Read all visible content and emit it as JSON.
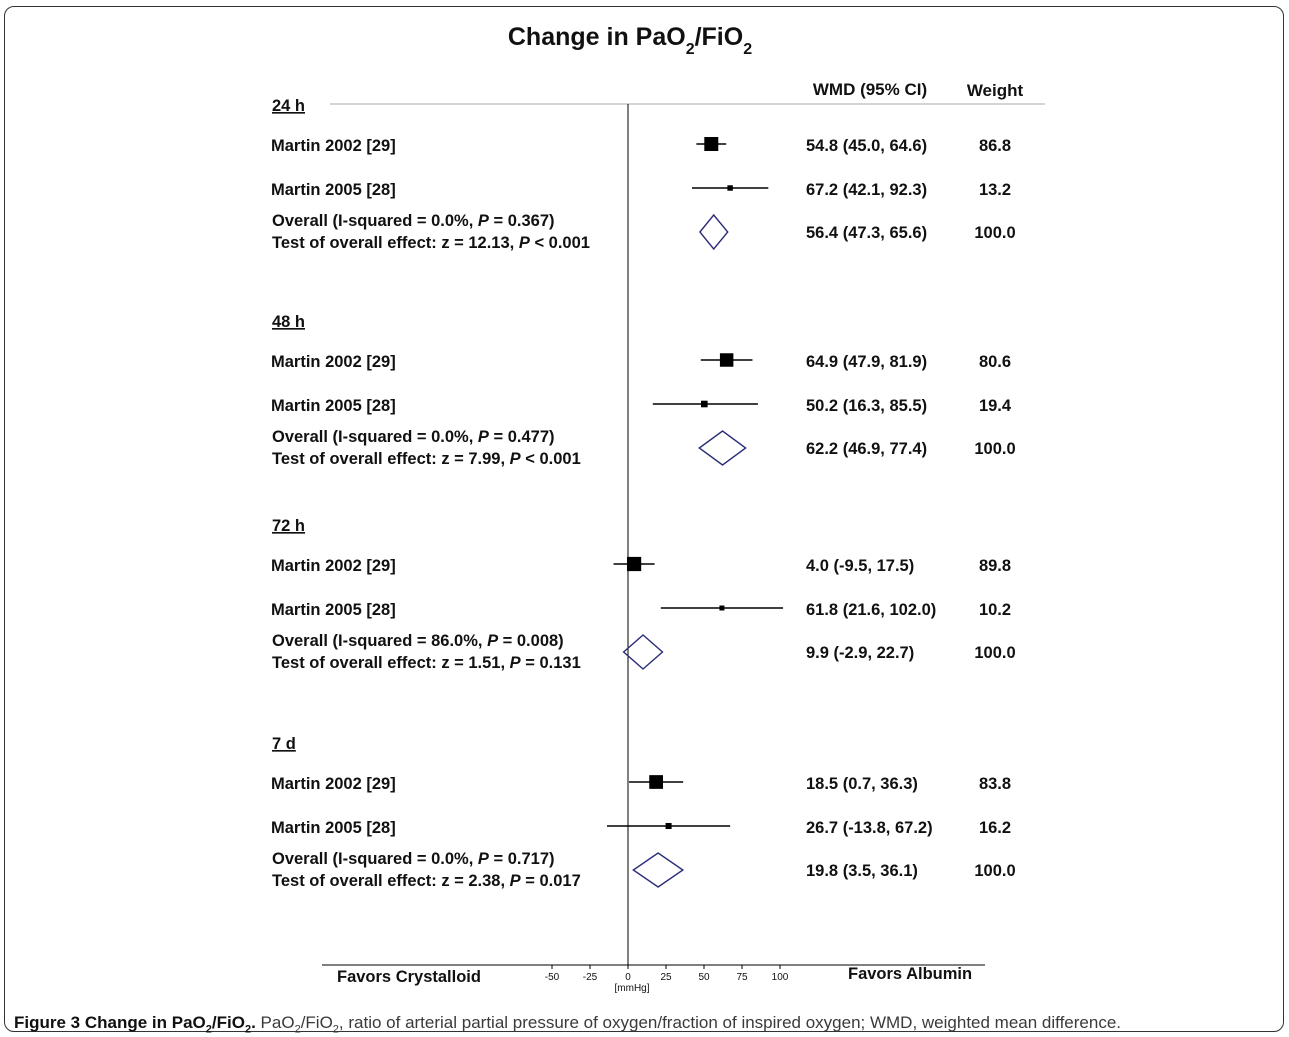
{
  "chart_data": {
    "type": "forest",
    "title": "Change in PaO2/FiO2",
    "columns": {
      "wmd": "WMD (95% CI)",
      "weight": "Weight"
    },
    "axis": {
      "unit": "[mmHg]",
      "ticks": [
        -50,
        -25,
        0,
        25,
        50,
        75,
        100
      ],
      "left_label": "Favors Crystalloid",
      "right_label": "Favors Albumin",
      "null_line": 0
    },
    "groups": [
      {
        "label": "24 h",
        "studies": [
          {
            "name": "Martin 2002 [29]",
            "est": 54.8,
            "lo": 45.0,
            "hi": 64.6,
            "ci_text": "54.8 (45.0, 64.6)",
            "weight": "86.8"
          },
          {
            "name": "Martin 2005 [28]",
            "est": 67.2,
            "lo": 42.1,
            "hi": 92.3,
            "ci_text": "67.2 (42.1, 92.3)",
            "weight": "13.2"
          }
        ],
        "overall": {
          "heterogeneity": "Overall (I-squared = 0.0%, P = 0.367)",
          "test": "Test of overall effect: z = 12.13, P < 0.001",
          "est": 56.4,
          "lo": 47.3,
          "hi": 65.6,
          "ci_text": "56.4 (47.3, 65.6)",
          "weight": "100.0"
        }
      },
      {
        "label": "48 h",
        "studies": [
          {
            "name": "Martin 2002 [29]",
            "est": 64.9,
            "lo": 47.9,
            "hi": 81.9,
            "ci_text": "64.9 (47.9, 81.9)",
            "weight": "80.6"
          },
          {
            "name": "Martin 2005 [28]",
            "est": 50.2,
            "lo": 16.3,
            "hi": 85.5,
            "ci_text": "50.2 (16.3, 85.5)",
            "weight": "19.4"
          }
        ],
        "overall": {
          "heterogeneity": "Overall (I-squared = 0.0%, P = 0.477)",
          "test": "Test of overall effect: z = 7.99, P < 0.001",
          "est": 62.2,
          "lo": 46.9,
          "hi": 77.4,
          "ci_text": "62.2 (46.9, 77.4)",
          "weight": "100.0"
        }
      },
      {
        "label": "72 h",
        "studies": [
          {
            "name": "Martin 2002 [29]",
            "est": 4.0,
            "lo": -9.5,
            "hi": 17.5,
            "ci_text": "4.0 (-9.5, 17.5)",
            "weight": "89.8"
          },
          {
            "name": "Martin 2005 [28]",
            "est": 61.8,
            "lo": 21.6,
            "hi": 102.0,
            "ci_text": "61.8 (21.6, 102.0)",
            "weight": "10.2"
          }
        ],
        "overall": {
          "heterogeneity": "Overall (I-squared = 86.0%, P = 0.008)",
          "test": "Test of overall effect: z = 1.51, P = 0.131",
          "est": 9.9,
          "lo": -2.9,
          "hi": 22.7,
          "ci_text": "9.9 (-2.9, 22.7)",
          "weight": "100.0"
        }
      },
      {
        "label": "7 d",
        "studies": [
          {
            "name": "Martin 2002 [29]",
            "est": 18.5,
            "lo": 0.7,
            "hi": 36.3,
            "ci_text": "18.5 (0.7, 36.3)",
            "weight": "83.8"
          },
          {
            "name": "Martin 2005 [28]",
            "est": 26.7,
            "lo": -13.8,
            "hi": 67.2,
            "ci_text": "26.7 (-13.8, 67.2)",
            "weight": "16.2"
          }
        ],
        "overall": {
          "heterogeneity": "Overall (I-squared = 0.0%, P = 0.717)",
          "test": "Test of overall effect: z = 2.38, P = 0.017",
          "est": 19.8,
          "lo": 3.5,
          "hi": 36.1,
          "ci_text": "19.8 (3.5, 36.1)",
          "weight": "100.0"
        }
      }
    ],
    "colors": {
      "diamond": "#2a2e7a",
      "marker": "#000000"
    }
  },
  "caption": {
    "label": "Figure 3 Change in PaO2/FiO2.",
    "text": "PaO2/FiO2, ratio of arterial partial pressure of oxygen/fraction of inspired oxygen; WMD, weighted mean difference."
  }
}
